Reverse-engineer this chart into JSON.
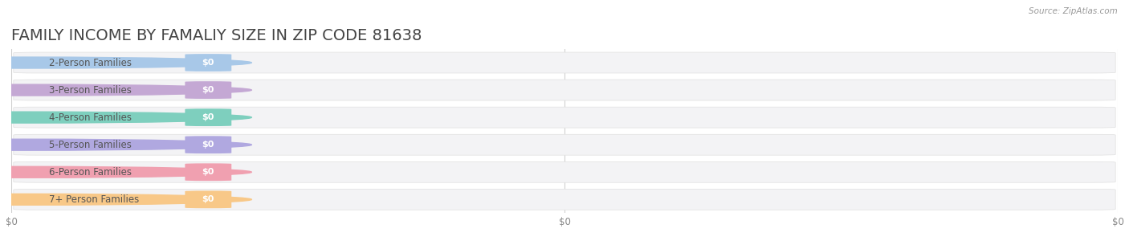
{
  "title": "FAMILY INCOME BY FAMALIY SIZE IN ZIP CODE 81638",
  "source": "Source: ZipAtlas.com",
  "categories": [
    "2-Person Families",
    "3-Person Families",
    "4-Person Families",
    "5-Person Families",
    "6-Person Families",
    "7+ Person Families"
  ],
  "values": [
    0,
    0,
    0,
    0,
    0,
    0
  ],
  "bar_colors": [
    "#a8c8e8",
    "#c4a8d4",
    "#7ecfbe",
    "#b0a8e0",
    "#f0a0b0",
    "#f8c888"
  ],
  "background_color": "#ffffff",
  "label_bg_color": "#f5f5f7",
  "value_label": "$0",
  "xlim_max": 1.0,
  "title_fontsize": 14,
  "label_fontsize": 8.5,
  "tick_fontsize": 8.5,
  "xtick_positions": [
    0.0,
    0.5,
    1.0
  ]
}
